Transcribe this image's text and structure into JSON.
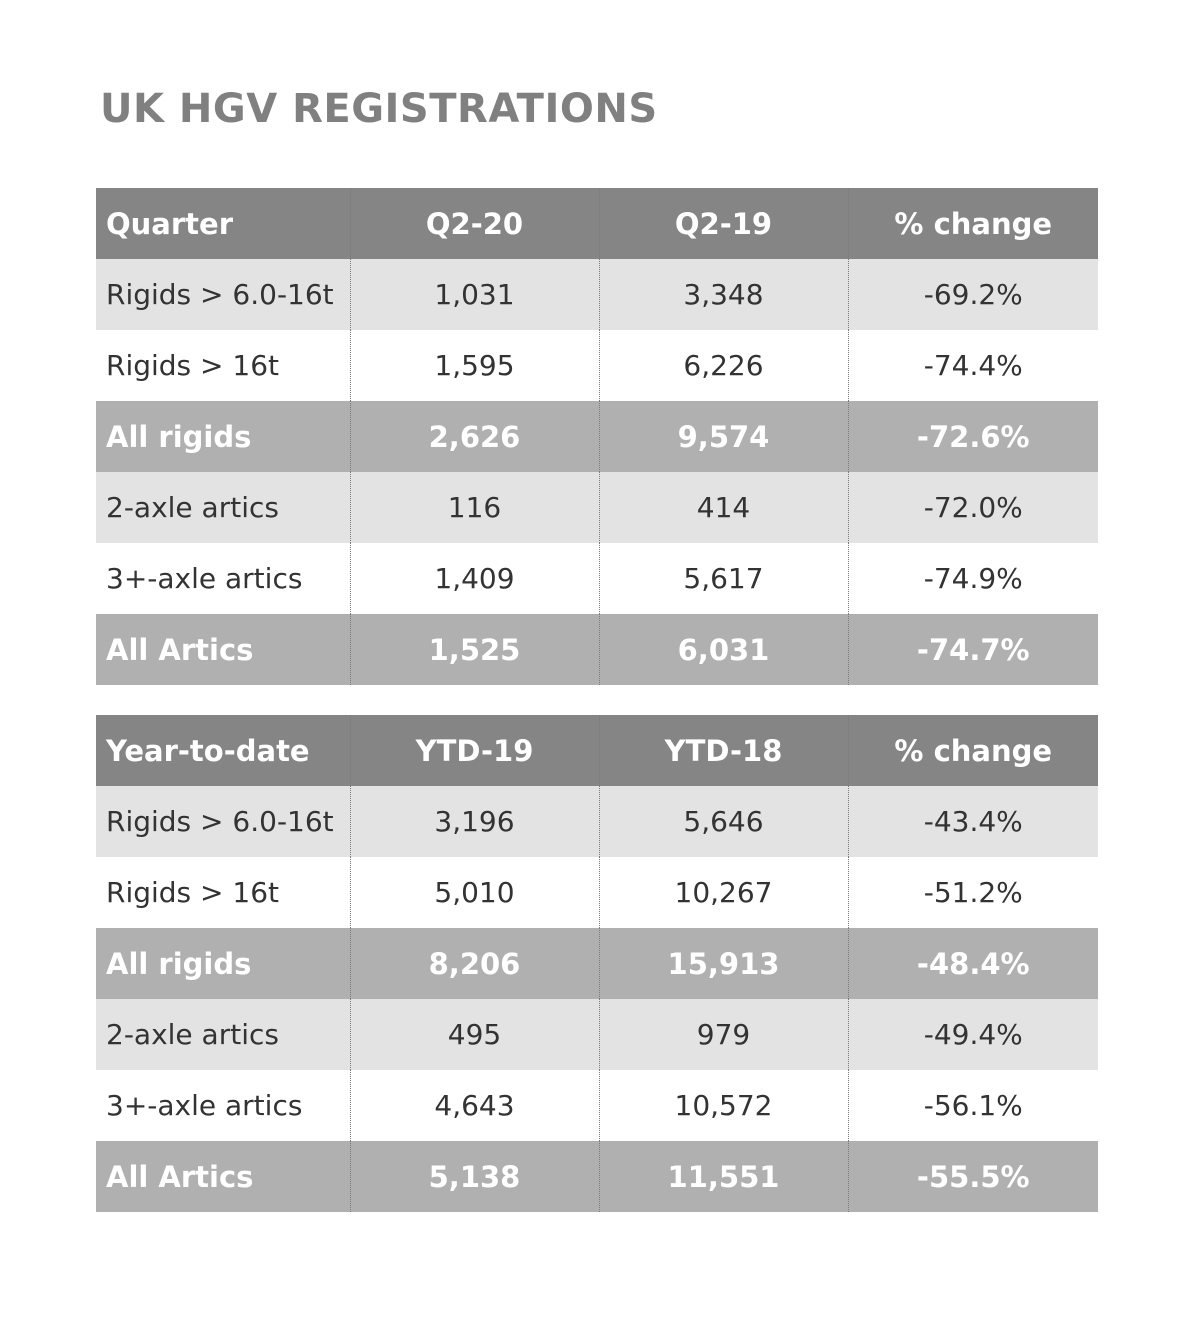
{
  "title": "UK HGV REGISTRATIONS",
  "colors": {
    "header_bg": "#858585",
    "total_bg": "#b0b0b0",
    "light_row_bg": "#e3e3e3",
    "title_color": "#808080"
  },
  "chart_data": [
    {
      "type": "table",
      "columns": [
        "Quarter",
        "Q2-20",
        "Q2-19",
        "% change"
      ],
      "rows": [
        [
          "Rigids > 6.0-16t",
          "1,031",
          "3,348",
          "-69.2%"
        ],
        [
          "Rigids > 16t",
          "1,595",
          "6,226",
          "-74.4%"
        ],
        [
          "All rigids",
          "2,626",
          "9,574",
          "-72.6%"
        ],
        [
          "2-axle artics",
          "116",
          "414",
          "-72.0%"
        ],
        [
          "3+-axle artics",
          "1,409",
          "5,617",
          "-74.9%"
        ],
        [
          "All Artics",
          "1,525",
          "6,031",
          "-74.7%"
        ]
      ]
    },
    {
      "type": "table",
      "columns": [
        "Year-to-date",
        "YTD-19",
        "YTD-18",
        "% change"
      ],
      "rows": [
        [
          "Rigids > 6.0-16t",
          "3,196",
          "5,646",
          "-43.4%"
        ],
        [
          "Rigids > 16t",
          "5,010",
          "10,267",
          "-51.2%"
        ],
        [
          "All rigids",
          "8,206",
          "15,913",
          "-48.4%"
        ],
        [
          "2-axle artics",
          "495",
          "979",
          "-49.4%"
        ],
        [
          "3+-axle artics",
          "4,643",
          "10,572",
          "-56.1%"
        ],
        [
          "All Artics",
          "5,138",
          "11,551",
          "-55.5%"
        ]
      ]
    }
  ]
}
